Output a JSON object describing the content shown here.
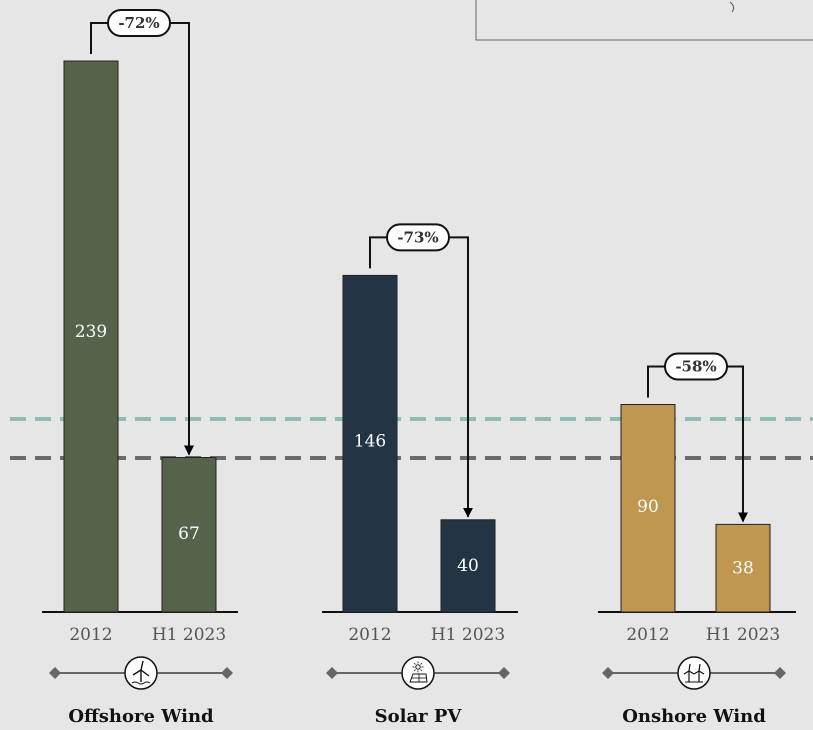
{
  "chart_data": {
    "type": "bar",
    "series_labels": [
      "2012",
      "H1 2023"
    ],
    "groups": [
      {
        "category": "Offshore Wind",
        "values": [
          239,
          67
        ],
        "change": "-72%",
        "color": "#56634b",
        "icon": "offshore-wind-turbine-icon"
      },
      {
        "category": "Solar PV",
        "values": [
          146,
          40
        ],
        "change": "-73%",
        "color": "#233545",
        "icon": "solar-panel-icon"
      },
      {
        "category": "Onshore Wind",
        "values": [
          90,
          38
        ],
        "change": "-58%",
        "color": "#bf974f",
        "icon": "onshore-wind-turbines-icon"
      }
    ],
    "reference_lines": [
      {
        "color": "#8fbcb5"
      },
      {
        "color": "#6b6b6b"
      }
    ],
    "ylim": [
      0,
      239
    ],
    "title": "",
    "xlabel": "",
    "ylabel": ""
  },
  "legend_box": {
    "text": ""
  }
}
